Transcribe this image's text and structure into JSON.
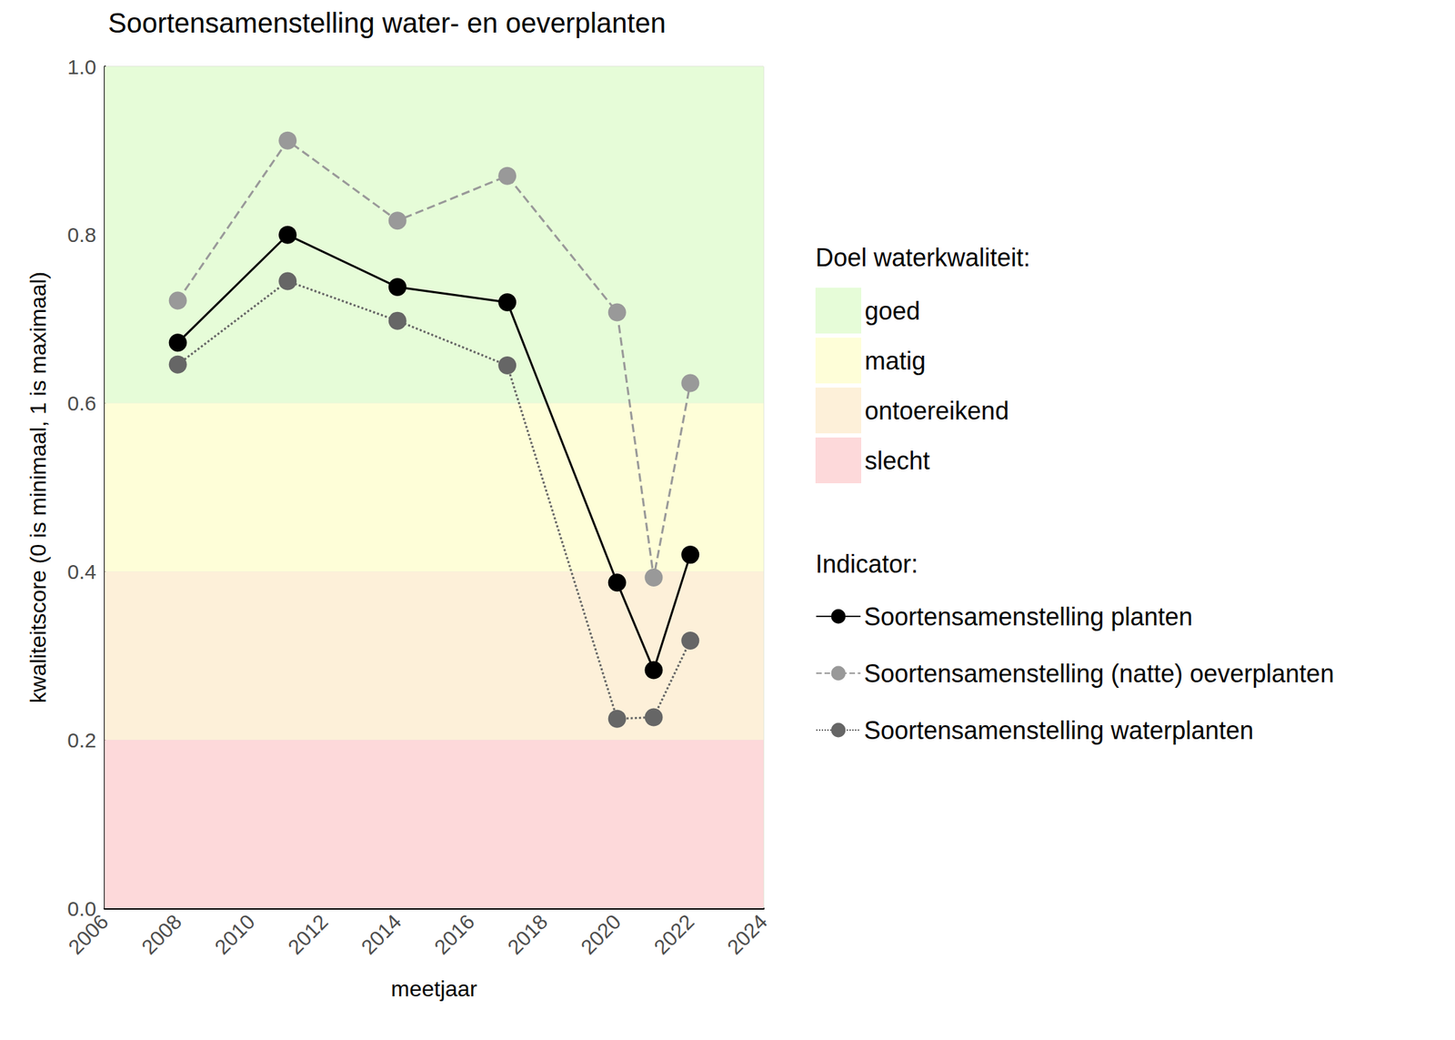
{
  "chart_data": {
    "type": "line",
    "title": "Soortensamenstelling water- en oeverplanten",
    "x_label": "meetjaar",
    "y_label": "kwaliteitscore (0 is minimaal, 1 is maximaal)",
    "x": [
      2008,
      2011,
      2014,
      2017,
      2020,
      2021,
      2022
    ],
    "xlim": [
      2006,
      2024
    ],
    "xticks": [
      2006,
      2008,
      2010,
      2012,
      2014,
      2016,
      2018,
      2020,
      2022,
      2024
    ],
    "ylim": [
      0,
      1
    ],
    "yticks": [
      {
        "value": 0,
        "label": "0.0"
      },
      0.2,
      0.4,
      0.6,
      0.8,
      {
        "value": 1,
        "label": "1.0"
      }
    ],
    "grid": true,
    "bands": {
      "title": "Doel waterkwaliteit:",
      "items": [
        {
          "name": "goed",
          "from": 0.6,
          "to": 1,
          "color": "#e6fcd8"
        },
        {
          "name": "matig",
          "from": 0.4,
          "to": 0.6,
          "color": "#fefed8"
        },
        {
          "name": "ontoereikend",
          "from": 0.2,
          "to": 0.4,
          "color": "#fdf0d9"
        },
        {
          "name": "slecht",
          "from": 0,
          "to": 0.2,
          "color": "#fdd9da"
        }
      ]
    },
    "series_title": "Indicator:",
    "series": [
      {
        "name": "Soortensamenstelling planten",
        "color": "#000000",
        "marker": "circle",
        "line_style": "solid",
        "values": [
          0.672,
          0.8,
          0.738,
          0.72,
          0.387,
          0.283,
          0.42
        ]
      },
      {
        "name": "Soortensamenstelling (natte) oeverplanten",
        "color": "#999999",
        "marker": "circle",
        "line_style": "dashed",
        "values": [
          0.722,
          0.912,
          0.817,
          0.87,
          0.708,
          0.393,
          0.624
        ]
      },
      {
        "name": "Soortensamenstelling waterplanten",
        "color": "#666666",
        "marker": "circle",
        "line_style": "dotted",
        "values": [
          0.646,
          0.745,
          0.698,
          0.645,
          0.225,
          0.227,
          0.318
        ]
      }
    ]
  }
}
